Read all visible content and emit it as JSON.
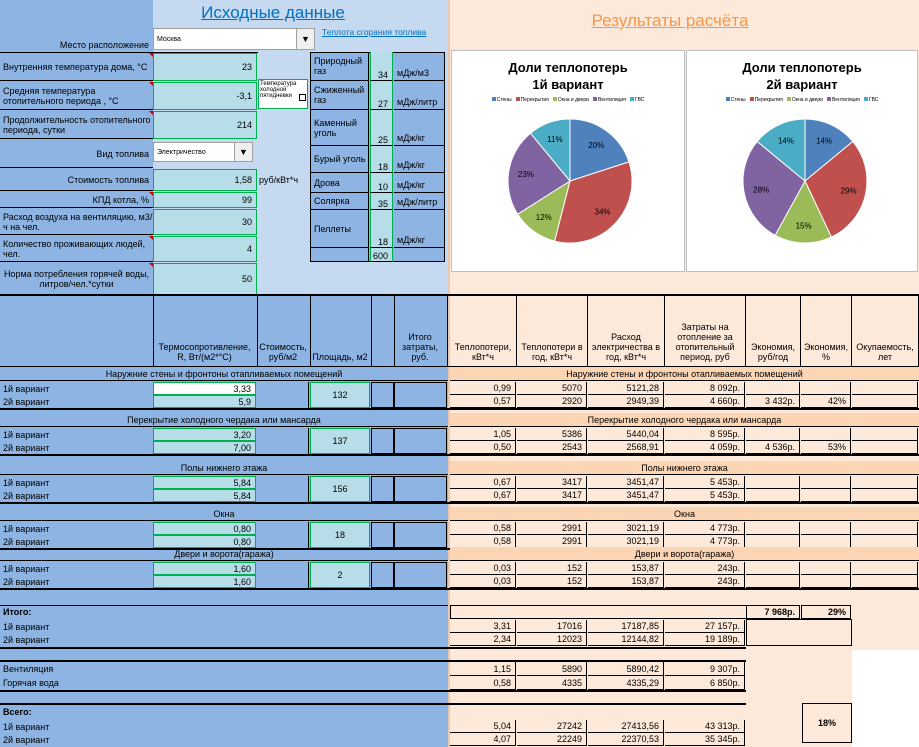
{
  "header": {
    "input_title": "Исходные данные",
    "results_title": "Результаты расчёта"
  },
  "inputs": {
    "location_label": "Место расположение",
    "location_value": "Москва",
    "heat_link": "Теплота сгорания топлива",
    "indoor_temp_label": "Внутренняя температура дома, °С",
    "indoor_temp": "23",
    "avg_temp_label": "Средняя температура отопительного периода , °С",
    "avg_temp": "-3,1",
    "cold_check_label": "Температура холодной пятидневки",
    "duration_label": "Продолжительность отопительного периода, сутки",
    "duration": "214",
    "fuel_label": "Вид топлива",
    "fuel_value": "Электричество",
    "cost_label": "Стоимость топлива",
    "cost": "1,58",
    "cost_unit": "руб/кВт*ч",
    "eff_label": "КПД котла, %",
    "eff": "99",
    "vent_label": "Расход воздуха на вентиляцию, м3/ч на чел.",
    "vent": "30",
    "people_label": "Количество проживающих людей, чел.",
    "people": "4",
    "water_label": "Норма потребления горячей воды, литров/чел.*сутки",
    "water": "50"
  },
  "fuels": [
    {
      "name": "Природный газ",
      "value": "34",
      "unit": "мДж/м3"
    },
    {
      "name": "Сжиженный газ",
      "value": "27",
      "unit": "мДж/литр"
    },
    {
      "name": "Каменный уголь",
      "value": "25",
      "unit": "мДж/кг"
    },
    {
      "name": "Бурый уголь",
      "value": "18",
      "unit": "мДж/кг"
    },
    {
      "name": "Дрова",
      "value": "10",
      "unit": "мДж/кг"
    },
    {
      "name": "Солярка",
      "value": "35",
      "unit": "мДж/литр"
    },
    {
      "name": "Пеллеты",
      "value": "18",
      "unit": "мДж/кг"
    },
    {
      "name": "",
      "value": "600",
      "unit": ""
    }
  ],
  "charts": [
    {
      "title": "Доли теплопотерь",
      "subtitle": "1й вариант",
      "labels": [
        "20%",
        "34%",
        "12%",
        "23%",
        "11%"
      ],
      "values": [
        20,
        34,
        12,
        23,
        11
      ]
    },
    {
      "title": "Доли теплопотерь",
      "subtitle": "2й вариант",
      "labels": [
        "14%",
        "29%",
        "15%",
        "28%",
        "14%"
      ],
      "values": [
        14,
        29,
        15,
        28,
        14
      ]
    }
  ],
  "legend": [
    "Стены",
    "Перекрытия",
    "Окна и двери",
    "Вентиляция",
    "ГВС"
  ],
  "colors": {
    "walls": "#4f81bd",
    "ceiling": "#c0504d",
    "windows": "#9bbb59",
    "vent": "#8064a2",
    "water": "#4bacc6",
    "blue_bg": "#8db4e2",
    "pink_bg": "#fde9d9",
    "input_bg": "#b7dee8"
  },
  "table": {
    "headers": {
      "resist": "Термосопротивление, R, Вт/(м2*°С)",
      "cost": "Стоимость, руб/м2",
      "area": "Площадь, м2",
      "total": "Итого затраты, руб.",
      "loss": "Теплопотери, кВт*ч",
      "loss_year": "Теплопотери в год, кВт*ч",
      "elec": "Расход электричества в год, кВт*ч",
      "heat_cost": "Затраты на отопление за отопительный период, руб",
      "econ": "Экономия, руб/год",
      "econ_pct": "Экономия, %",
      "payback": "Окупаемость, лет"
    },
    "sections": [
      {
        "title": "Наружние стены и фронтоны отапливаемых помещений",
        "area": "132",
        "rows": [
          {
            "label": "1й вариант",
            "r": "3,33",
            "loss": "0,99",
            "year": "5070",
            "elec": "5121,28",
            "cost": "8 092р.",
            "econ": "",
            "pct": ""
          },
          {
            "label": "2й вариант",
            "r": "5,9",
            "loss": "0,57",
            "year": "2920",
            "elec": "2949,39",
            "cost": "4 660р.",
            "econ": "3 432р.",
            "pct": "42%"
          }
        ]
      },
      {
        "title": "Перекрытие холодного чердака или мансарда",
        "area": "137",
        "rows": [
          {
            "label": "1й вариант",
            "r": "3,20",
            "loss": "1,05",
            "year": "5386",
            "elec": "5440,04",
            "cost": "8 595р.",
            "econ": "",
            "pct": ""
          },
          {
            "label": "2й вариант",
            "r": "7,00",
            "loss": "0,50",
            "year": "2543",
            "elec": "2568,91",
            "cost": "4 059р.",
            "econ": "4 536р.",
            "pct": "53%"
          }
        ]
      },
      {
        "title": "Полы нижнего этажа",
        "area": "156",
        "rows": [
          {
            "label": "1й вариант",
            "r": "5,84",
            "loss": "0,67",
            "year": "3417",
            "elec": "3451,47",
            "cost": "5 453р.",
            "econ": "",
            "pct": ""
          },
          {
            "label": "2й вариант",
            "r": "5,84",
            "loss": "0,67",
            "year": "3417",
            "elec": "3451,47",
            "cost": "5 453р.",
            "econ": "",
            "pct": ""
          }
        ]
      },
      {
        "title": "Окна",
        "area": "18",
        "rows": [
          {
            "label": "1й вариант",
            "r": "0,80",
            "loss": "0,58",
            "year": "2991",
            "elec": "3021,19",
            "cost": "4 773р.",
            "econ": "",
            "pct": ""
          },
          {
            "label": "2й вариант",
            "r": "0,80",
            "loss": "0,58",
            "year": "2991",
            "elec": "3021,19",
            "cost": "4 773р.",
            "econ": "",
            "pct": ""
          }
        ]
      },
      {
        "title": "Двери и ворота(гаража)",
        "area": "2",
        "rows": [
          {
            "label": "1й вариант",
            "r": "1,60",
            "loss": "0,03",
            "year": "152",
            "elec": "153,87",
            "cost": "243р.",
            "econ": "",
            "pct": ""
          },
          {
            "label": "2й вариант",
            "r": "1,60",
            "loss": "0,03",
            "year": "152",
            "elec": "153,87",
            "cost": "243р.",
            "econ": "",
            "pct": ""
          }
        ]
      }
    ],
    "itogo": {
      "label": "Итого:",
      "econ": "7 968р.",
      "pct": "29%",
      "rows": [
        {
          "label": "1й вариант",
          "loss": "3,31",
          "year": "17016",
          "elec": "17187,85",
          "cost": "27 157р."
        },
        {
          "label": "2й вариант",
          "loss": "2,34",
          "year": "12023",
          "elec": "12144,82",
          "cost": "19 189р."
        }
      ]
    },
    "extra": [
      {
        "label": "Вентиляция",
        "loss": "1,15",
        "year": "5890",
        "elec": "5890,42",
        "cost": "9 307р."
      },
      {
        "label": "Горячая вода",
        "loss": "0,58",
        "year": "4335",
        "elec": "4335,29",
        "cost": "6 850р."
      }
    ],
    "vsego": {
      "label": "Всего:",
      "pct": "18%",
      "rows": [
        {
          "label": "1й вариант",
          "loss": "5,04",
          "year": "27242",
          "elec": "27413,56",
          "cost": "43 313р."
        },
        {
          "label": "2й вариант",
          "loss": "4,07",
          "year": "22249",
          "elec": "22370,53",
          "cost": "35 345р."
        }
      ]
    }
  }
}
